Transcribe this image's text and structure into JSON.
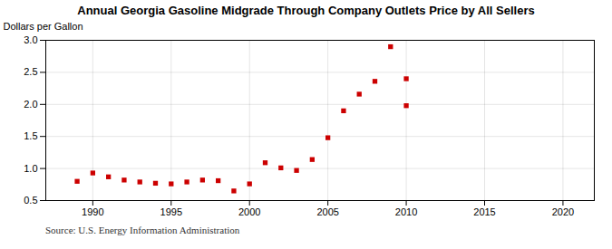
{
  "chart_data": {
    "type": "scatter",
    "title": "Annual Georgia Gasoline Midgrade Through Company Outlets Price by All Sellers",
    "ylabel": "Dollars per Gallon",
    "source": "Source: U.S. Energy Information Administration",
    "x": [
      1989,
      1990,
      1991,
      1992,
      1993,
      1994,
      1995,
      1996,
      1997,
      1998,
      1999,
      2000,
      2001,
      2002,
      2003,
      2004,
      2005,
      2006,
      2007,
      2008,
      2009,
      2010,
      2010
    ],
    "values": [
      0.8,
      0.93,
      0.87,
      0.82,
      0.79,
      0.77,
      0.76,
      0.79,
      0.82,
      0.81,
      0.65,
      0.76,
      1.09,
      1.01,
      0.97,
      1.14,
      1.48,
      1.9,
      2.16,
      2.36,
      2.9,
      1.98,
      2.4
    ],
    "color": "#cc0000",
    "marker": "square",
    "xlim": [
      1987,
      2022
    ],
    "ylim": [
      0.5,
      3.0
    ],
    "xticks": [
      1990,
      1995,
      2000,
      2005,
      2010,
      2015,
      2020
    ],
    "yticks": [
      0.5,
      {
        "value": 1.0,
        "label": "1.0"
      },
      1.5,
      {
        "value": 2.0,
        "label": "2.0"
      },
      2.5,
      {
        "value": 3.0,
        "label": "3.0"
      }
    ],
    "grid": true
  }
}
